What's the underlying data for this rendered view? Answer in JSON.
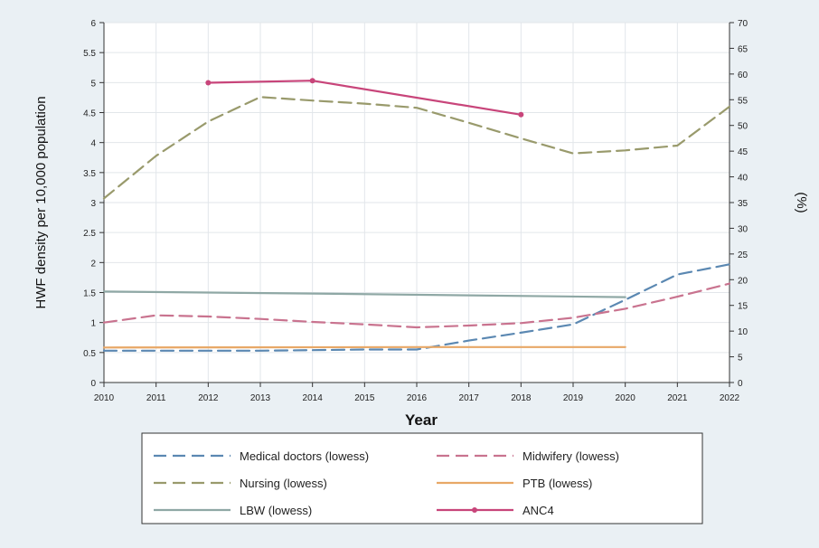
{
  "chart_data": {
    "type": "line",
    "xlabel": "Year",
    "ylabel": "HWF density per 10,000 population",
    "y2label": "(%)",
    "x_ticks": [
      2010,
      2011,
      2012,
      2013,
      2014,
      2015,
      2016,
      2017,
      2018,
      2019,
      2020,
      2021,
      2022
    ],
    "xlim": [
      2010,
      2022
    ],
    "ylim": [
      0,
      6
    ],
    "y2lim": [
      0,
      70
    ],
    "y_ticks": [
      "0",
      "0.5",
      "1",
      "1.5",
      "2",
      "2.5",
      "3",
      "3.5",
      "4",
      "4.5",
      "5",
      "5.5",
      "6"
    ],
    "y2_ticks": [
      "0",
      "5",
      "10",
      "15",
      "20",
      "25",
      "30",
      "35",
      "40",
      "45",
      "50",
      "55",
      "60",
      "65",
      "70"
    ],
    "grid": true,
    "legend_position": "bottom",
    "series": [
      {
        "name": "Medical doctors (lowess)",
        "axis": "left",
        "color": "#5b88b2",
        "dash": "dashed",
        "markers": false,
        "x": [
          2010,
          2011,
          2012,
          2013,
          2014,
          2015,
          2016,
          2017,
          2018,
          2019,
          2020,
          2021,
          2022
        ],
        "y": [
          0.53,
          0.53,
          0.53,
          0.53,
          0.54,
          0.55,
          0.55,
          0.7,
          0.83,
          0.97,
          1.38,
          1.8,
          1.97
        ]
      },
      {
        "name": "Midwifery (lowess)",
        "axis": "left",
        "color": "#c9738f",
        "dash": "dashed",
        "markers": false,
        "x": [
          2010,
          2011,
          2012,
          2013,
          2014,
          2015,
          2016,
          2017,
          2018,
          2019,
          2020,
          2021,
          2022
        ],
        "y": [
          1.0,
          1.12,
          1.1,
          1.06,
          1.01,
          0.97,
          0.92,
          0.95,
          0.99,
          1.08,
          1.23,
          1.43,
          1.65
        ]
      },
      {
        "name": "Nursing (lowess)",
        "axis": "left",
        "color": "#999a6c",
        "dash": "dashed",
        "markers": false,
        "x": [
          2010,
          2011,
          2012,
          2013,
          2014,
          2015,
          2016,
          2017,
          2018,
          2019,
          2020,
          2021,
          2022
        ],
        "y": [
          3.07,
          3.78,
          4.35,
          4.76,
          4.7,
          4.65,
          4.58,
          4.33,
          4.07,
          3.82,
          3.87,
          3.95,
          4.6
        ]
      },
      {
        "name": "PTB (lowess)",
        "axis": "right",
        "color": "#e8a867",
        "dash": "solid",
        "markers": false,
        "x": [
          2010,
          2016,
          2020
        ],
        "y": [
          6.8,
          6.9,
          6.9
        ]
      },
      {
        "name": "LBW (lowess)",
        "axis": "right",
        "color": "#8fa8a5",
        "dash": "solid",
        "markers": false,
        "x": [
          2010,
          2014,
          2020
        ],
        "y": [
          17.7,
          17.3,
          16.6
        ]
      },
      {
        "name": "ANC4",
        "axis": "right",
        "color": "#c8457a",
        "dash": "solid",
        "markers": true,
        "x": [
          2012,
          2014,
          2018
        ],
        "y": [
          58.3,
          58.7,
          52.1
        ]
      }
    ]
  }
}
